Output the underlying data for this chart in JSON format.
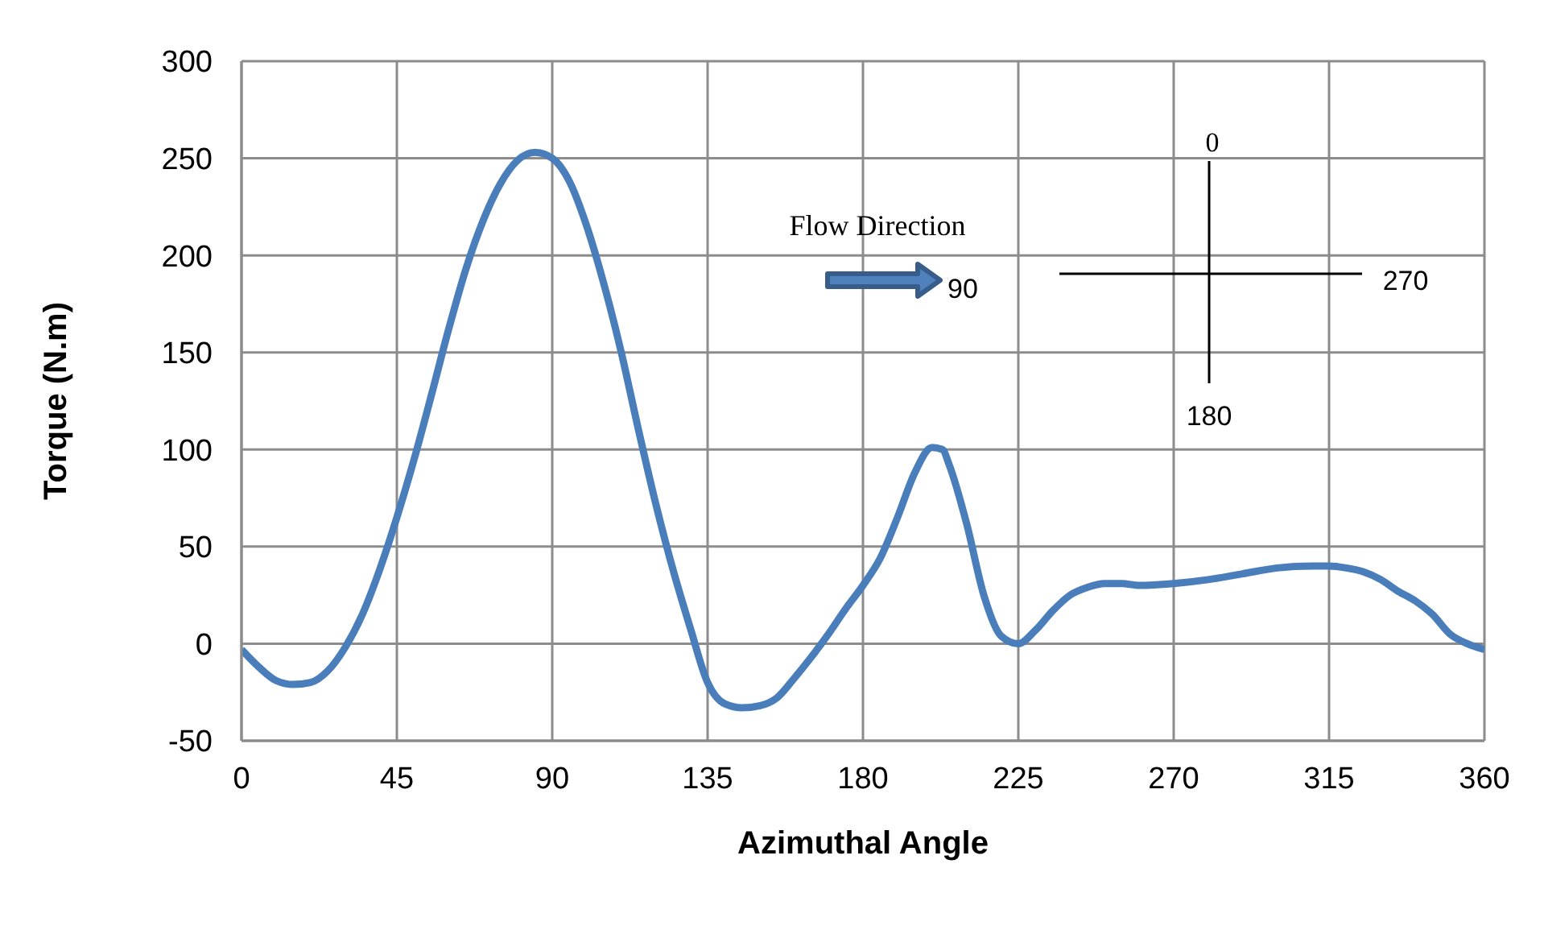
{
  "chart_data": {
    "type": "line",
    "xlabel": "Azimuthal Angle",
    "ylabel": "Torque (N.m)",
    "x": [
      0,
      5,
      10,
      15,
      20,
      25,
      30,
      35,
      40,
      45,
      50,
      55,
      60,
      65,
      70,
      75,
      80,
      85,
      90,
      95,
      100,
      105,
      110,
      115,
      120,
      125,
      130,
      135,
      140,
      145,
      150,
      155,
      160,
      165,
      170,
      175,
      180,
      185,
      190,
      195,
      200,
      203,
      205,
      210,
      215,
      220,
      225,
      230,
      235,
      240,
      245,
      250,
      255,
      260,
      270,
      280,
      290,
      300,
      310,
      315,
      320,
      325,
      330,
      335,
      340,
      345,
      350,
      355,
      360
    ],
    "series": [
      {
        "color": "#4a7ebb",
        "values": [
          -3,
          -12,
          -19,
          -21,
          -20,
          -14,
          -2,
          15,
          38,
          65,
          95,
          128,
          162,
          193,
          218,
          237,
          249,
          253,
          250,
          238,
          215,
          185,
          150,
          110,
          72,
          38,
          8,
          -20,
          -31,
          -33,
          -32,
          -28,
          -18,
          -7,
          5,
          18,
          30,
          44,
          65,
          88,
          101,
          100,
          92,
          62,
          25,
          4,
          0,
          7,
          17,
          25,
          29,
          31,
          31,
          30,
          31,
          33,
          36,
          39,
          40,
          40,
          39,
          37,
          33,
          27,
          22,
          15,
          5,
          0,
          -3
        ]
      }
    ],
    "xlim": [
      0,
      360
    ],
    "xticks": [
      0,
      45,
      90,
      135,
      180,
      225,
      270,
      315,
      360
    ],
    "ylim": [
      -50,
      300
    ],
    "yticks": [
      -50,
      0,
      50,
      100,
      150,
      200,
      250,
      300
    ],
    "grid": true,
    "marker": "none",
    "line_style": "solid",
    "annotations": [
      "Flow Direction",
      "0",
      "90",
      "270",
      "180"
    ]
  }
}
